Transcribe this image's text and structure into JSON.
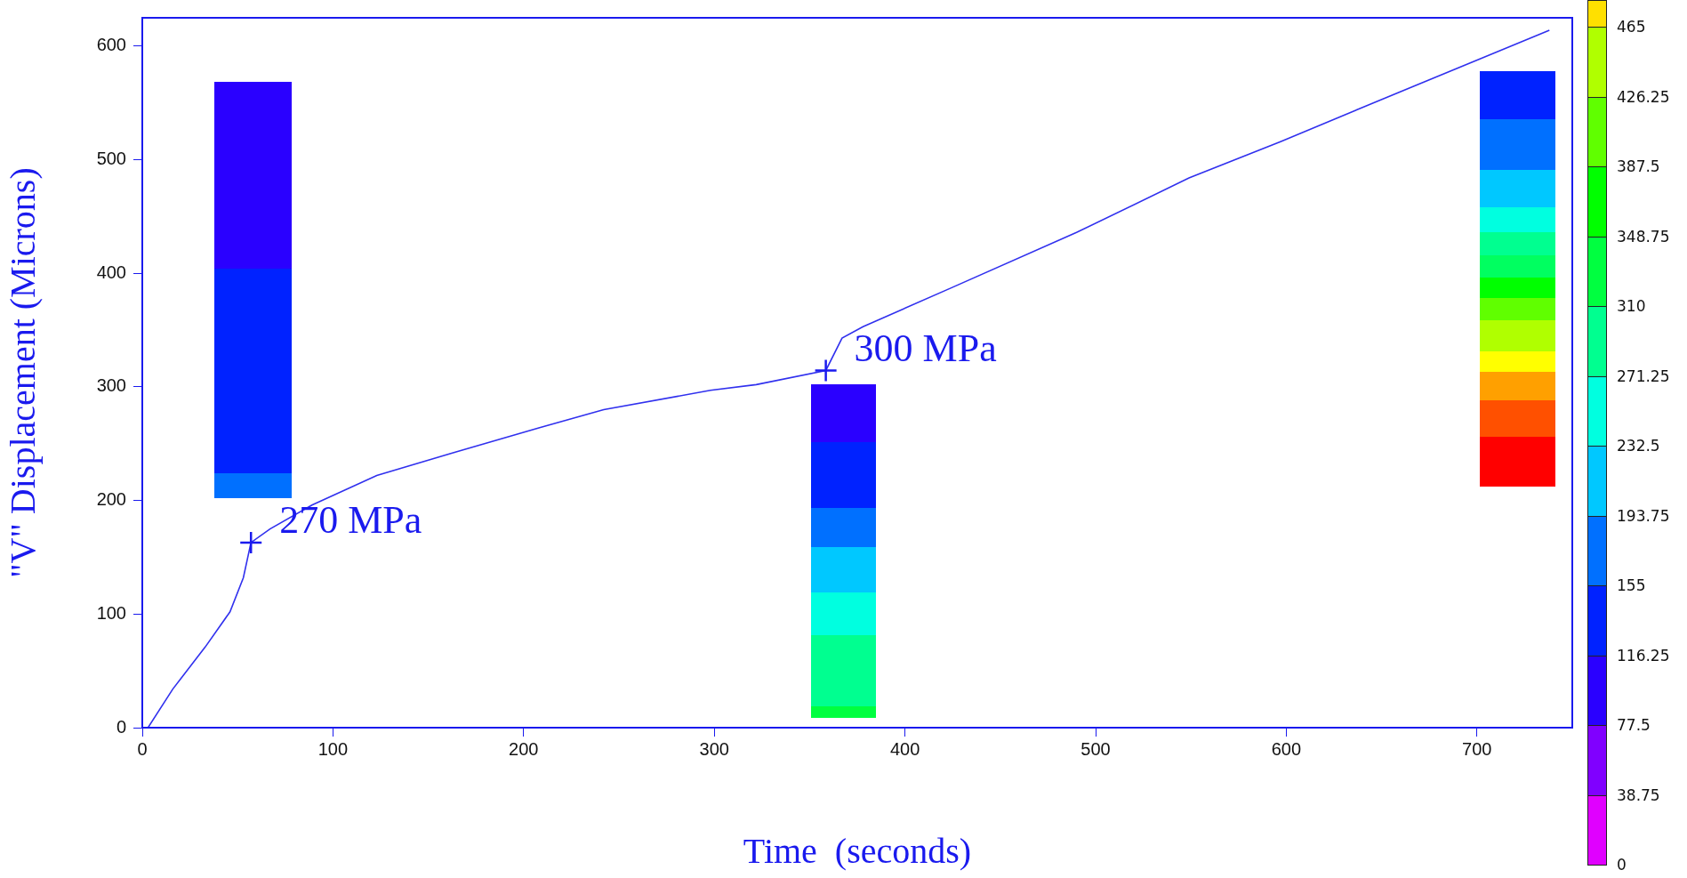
{
  "chart_data": {
    "type": "line",
    "xlabel": "Time  (seconds)",
    "ylabel": "\"V\" Displacement (Microns)",
    "x": [
      3,
      16,
      33,
      46,
      53,
      57,
      67,
      89,
      123,
      163,
      208,
      242,
      298,
      322,
      358.5,
      367,
      378,
      424,
      490,
      549,
      597,
      660,
      738
    ],
    "series": [
      {
        "color": "#3030ee",
        "values": [
          0,
          34,
          71,
          102,
          132,
          163,
          175,
          196,
          222,
          242,
          264,
          280,
          297,
          302,
          314.5,
          343,
          353,
          387,
          436,
          484,
          516,
          560,
          614
        ]
      }
    ],
    "xlim": [
      0,
      750
    ],
    "ylim": [
      0,
      625
    ],
    "xticks": [
      0,
      100,
      200,
      300,
      400,
      500,
      600,
      700
    ],
    "yticks": [
      0,
      100,
      200,
      300,
      400,
      500,
      600
    ],
    "annotations": [
      {
        "text": "270 MPa",
        "x": 57,
        "y": 163
      },
      {
        "text": "300 MPa",
        "x": 358.5,
        "y": 314.5
      }
    ],
    "clim": [
      0,
      480
    ],
    "cticks": [
      0,
      38.75,
      77.5,
      116.25,
      155,
      193.75,
      232.5,
      271.25,
      310,
      348.75,
      387.5,
      426.25,
      465
    ],
    "legend": false
  }
}
